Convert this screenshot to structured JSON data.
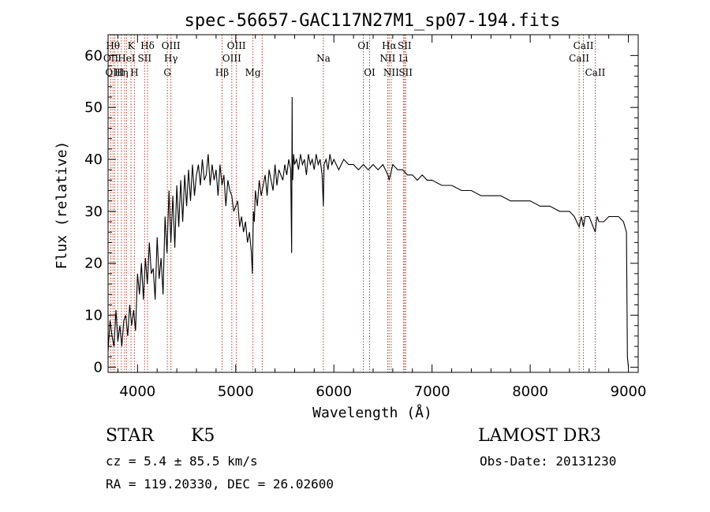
{
  "chart_data": {
    "type": "line",
    "title": "spec-56657-GAC117N27M1_sp07-194.fits",
    "xlabel": "Wavelength (Å)",
    "ylabel": "Flux (relative)",
    "xlim": [
      3700,
      9100
    ],
    "ylim": [
      -1,
      64
    ],
    "xticks": [
      4000,
      5000,
      6000,
      7000,
      8000,
      9000
    ],
    "yticks": [
      0,
      10,
      20,
      30,
      40,
      50,
      60
    ],
    "series": [
      {
        "name": "spectrum",
        "x": [
          3700,
          3720,
          3740,
          3760,
          3780,
          3800,
          3820,
          3840,
          3860,
          3880,
          3900,
          3920,
          3940,
          3960,
          3980,
          4000,
          4020,
          4040,
          4060,
          4080,
          4100,
          4120,
          4140,
          4160,
          4180,
          4200,
          4220,
          4240,
          4260,
          4280,
          4300,
          4320,
          4340,
          4360,
          4380,
          4400,
          4420,
          4440,
          4460,
          4480,
          4500,
          4520,
          4540,
          4560,
          4580,
          4600,
          4620,
          4640,
          4660,
          4680,
          4700,
          4720,
          4740,
          4760,
          4780,
          4800,
          4820,
          4840,
          4860,
          4880,
          4900,
          4920,
          4940,
          4960,
          4980,
          5000,
          5020,
          5040,
          5060,
          5080,
          5100,
          5120,
          5140,
          5160,
          5170,
          5180,
          5190,
          5200,
          5220,
          5240,
          5260,
          5280,
          5300,
          5320,
          5340,
          5360,
          5380,
          5400,
          5420,
          5440,
          5460,
          5480,
          5500,
          5520,
          5540,
          5560,
          5570,
          5575,
          5577,
          5580,
          5590,
          5600,
          5620,
          5640,
          5660,
          5680,
          5700,
          5720,
          5740,
          5760,
          5780,
          5800,
          5820,
          5840,
          5860,
          5880,
          5893,
          5900,
          5920,
          5940,
          5960,
          5980,
          6000,
          6050,
          6100,
          6150,
          6200,
          6250,
          6300,
          6350,
          6400,
          6450,
          6500,
          6550,
          6563,
          6600,
          6650,
          6700,
          6750,
          6800,
          6850,
          6900,
          6950,
          7000,
          7100,
          7200,
          7300,
          7400,
          7500,
          7600,
          7700,
          7800,
          7900,
          8000,
          8100,
          8200,
          8300,
          8400,
          8450,
          8498,
          8520,
          8542,
          8560,
          8600,
          8662,
          8680,
          8700,
          8750,
          8800,
          8850,
          8900,
          8950,
          8980,
          8990,
          9000
        ],
        "y": [
          3,
          9,
          6,
          4,
          11,
          5,
          8,
          4,
          9,
          10,
          6,
          12,
          8,
          11,
          7,
          18,
          14,
          20,
          13,
          21,
          16,
          24,
          18,
          19,
          13,
          25,
          17,
          21,
          14,
          29,
          22,
          34,
          24,
          33,
          23,
          35,
          27,
          36,
          28,
          37,
          31,
          38,
          32,
          39,
          33,
          37,
          39,
          35,
          40,
          36,
          37,
          41,
          35,
          39,
          36,
          38,
          33,
          39,
          35,
          37,
          31,
          36,
          34,
          33,
          30,
          31,
          32,
          27,
          29,
          26,
          28,
          24,
          26,
          22,
          18,
          30,
          28,
          34,
          31,
          36,
          33,
          35,
          37,
          33,
          38,
          36,
          34,
          39,
          35,
          38,
          37,
          36,
          39,
          37,
          40,
          38,
          22,
          52,
          40,
          36,
          41,
          39,
          40,
          38,
          41,
          39,
          40,
          37,
          41,
          39,
          40,
          38,
          41,
          39,
          40,
          37,
          31,
          39,
          40,
          38,
          41,
          39,
          40,
          38,
          40,
          39,
          39,
          38,
          39,
          38,
          39,
          38,
          39,
          37,
          36,
          39,
          38,
          38,
          37,
          37,
          36,
          37,
          36,
          36,
          35,
          35,
          34,
          34,
          33,
          33,
          33,
          32,
          32,
          32,
          31,
          31,
          30,
          30,
          29,
          27,
          29,
          27,
          29,
          29,
          26,
          29,
          28,
          28,
          29,
          29,
          29,
          28,
          26,
          2,
          0
        ]
      }
    ],
    "lines_top": [
      {
        "wl": 4102,
        "label": "Hδ"
      },
      {
        "wl": 3750,
        "label": "Hθ"
      },
      {
        "wl": 3934,
        "label": "K"
      },
      {
        "wl": 4340,
        "label": "OIII"
      },
      {
        "wl": 5007,
        "label": "OIII"
      },
      {
        "wl": 6300,
        "label": "OI"
      },
      {
        "wl": 6563,
        "label": "Hα"
      },
      {
        "wl": 6720,
        "label": "SII"
      },
      {
        "wl": 8542,
        "label": "CaII"
      }
    ],
    "lines_mid": [
      {
        "wl": 3728,
        "label": "OII"
      },
      {
        "wl": 3888,
        "label": "HeI"
      },
      {
        "wl": 4072,
        "label": "SII"
      },
      {
        "wl": 4340,
        "label": "Hγ"
      },
      {
        "wl": 4960,
        "label": "OIII"
      },
      {
        "wl": 5893,
        "label": "Na"
      },
      {
        "wl": 6548,
        "label": "NII"
      },
      {
        "wl": 6708,
        "label": "Li"
      },
      {
        "wl": 8498,
        "label": "CaII"
      }
    ],
    "lines_low": [
      {
        "wl": 3768,
        "label": "OIII"
      },
      {
        "wl": 3835,
        "label": "Hη"
      },
      {
        "wl": 3968,
        "label": "H"
      },
      {
        "wl": 4304,
        "label": "G"
      },
      {
        "wl": 4861,
        "label": "Hβ"
      },
      {
        "wl": 5175,
        "label": "Mg"
      },
      {
        "wl": 6364,
        "label": "OI"
      },
      {
        "wl": 6584,
        "label": "NII"
      },
      {
        "wl": 6731,
        "label": "SII"
      },
      {
        "wl": 8662,
        "label": "CaII"
      }
    ],
    "extra_markers": [
      3798,
      3868,
      5270
    ],
    "colors": {
      "spectrum": "#000000",
      "markers": "#c0392b"
    }
  },
  "info": {
    "object_class": "STAR",
    "subclass": "K5",
    "survey": "LAMOST DR3",
    "redshift": "cz = 5.4 ± 85.5 km/s",
    "obs_date": "Obs-Date: 20131230",
    "coords": "RA = 119.20330, DEC =  26.02600"
  }
}
